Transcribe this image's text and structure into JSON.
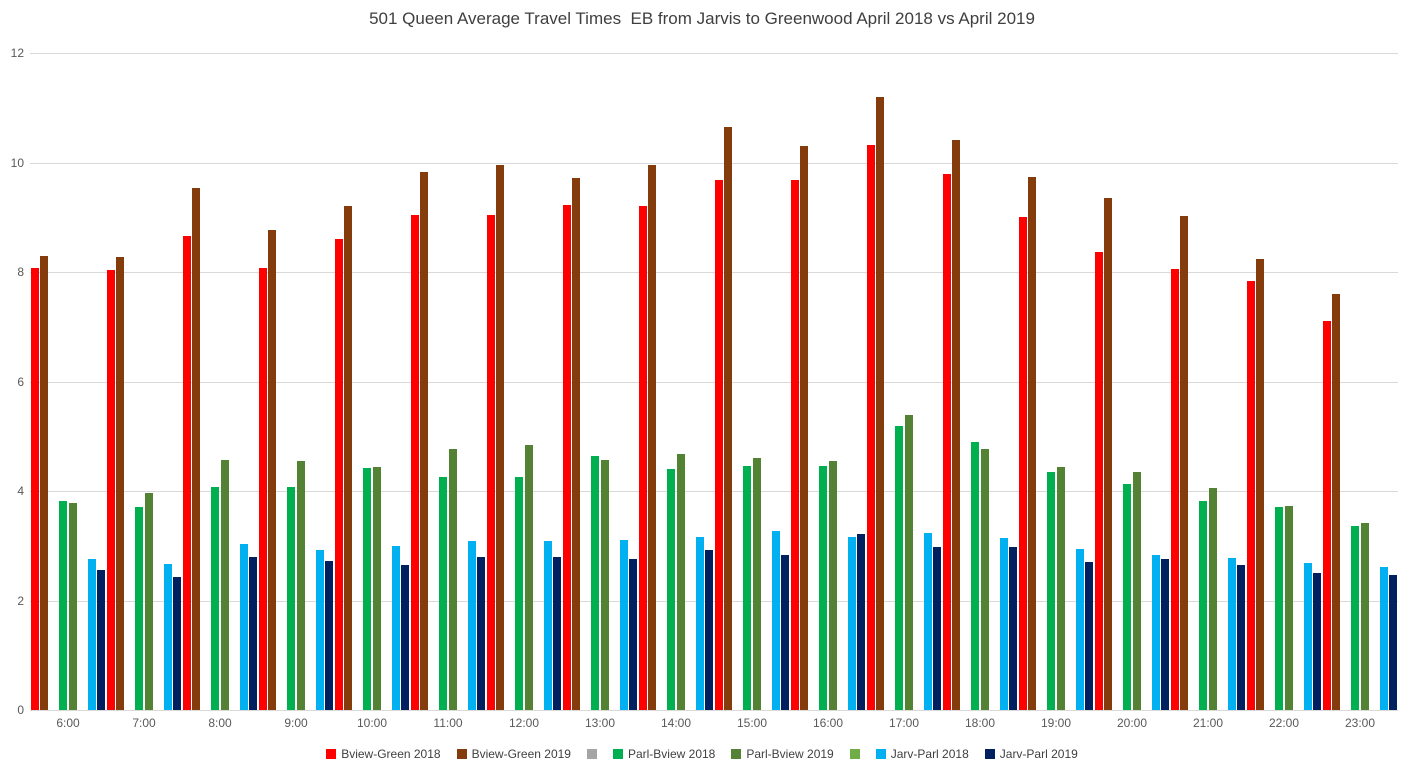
{
  "chart_data": {
    "type": "bar",
    "title": "501 Queen Average Travel Times  EB from Jarvis to Greenwood April 2018 vs April 2019",
    "xlabel": "",
    "ylabel": "",
    "ylim": [
      0,
      12
    ],
    "yticks": [
      0,
      2,
      4,
      6,
      8,
      10,
      12
    ],
    "grid": true,
    "legend_position": "bottom",
    "categories": [
      "6:00",
      "7:00",
      "8:00",
      "9:00",
      "10:00",
      "11:00",
      "12:00",
      "13:00",
      "14:00",
      "15:00",
      "16:00",
      "17:00",
      "18:00",
      "19:00",
      "20:00",
      "21:00",
      "22:00",
      "23:00"
    ],
    "series": [
      {
        "name": "Bview-Green 2018",
        "color": "#FF0000",
        "values": [
          8.08,
          8.03,
          8.66,
          8.08,
          8.6,
          9.04,
          9.05,
          9.22,
          9.2,
          9.68,
          9.68,
          10.32,
          9.79,
          9.0,
          8.37,
          8.06,
          7.83,
          7.1
        ]
      },
      {
        "name": "Bview-Green 2019",
        "color": "#843C0C",
        "values": [
          8.29,
          8.27,
          9.54,
          8.77,
          9.2,
          9.83,
          9.95,
          9.72,
          9.95,
          10.65,
          10.3,
          11.2,
          10.41,
          9.74,
          9.36,
          9.03,
          8.24,
          7.6
        ]
      },
      {
        "name": "",
        "color": "#A5A5A5",
        "values": [
          0,
          0,
          0,
          0,
          0,
          0,
          0,
          0,
          0,
          0,
          0,
          0,
          0,
          0,
          0,
          0,
          0,
          0
        ]
      },
      {
        "name": "Parl-Bview 2018",
        "color": "#00B050",
        "values": [
          3.82,
          3.7,
          4.07,
          4.08,
          4.42,
          4.26,
          4.26,
          4.64,
          4.41,
          4.45,
          4.46,
          5.18,
          4.89,
          4.34,
          4.12,
          3.81,
          3.7,
          3.37
        ]
      },
      {
        "name": "Parl-Bview 2019",
        "color": "#548235",
        "values": [
          3.78,
          3.97,
          4.57,
          4.54,
          4.44,
          4.77,
          4.84,
          4.56,
          4.68,
          4.6,
          4.54,
          5.38,
          4.76,
          4.43,
          4.34,
          4.05,
          3.73,
          3.41
        ]
      },
      {
        "name": "",
        "color": "#70AD47",
        "values": [
          0,
          0,
          0,
          0,
          0,
          0,
          0,
          0,
          0,
          0,
          0,
          0,
          0,
          0,
          0,
          0,
          0,
          0
        ]
      },
      {
        "name": "Jarv-Parl 2018",
        "color": "#00B0F0",
        "values": [
          2.75,
          2.67,
          3.03,
          2.93,
          3.0,
          3.09,
          3.09,
          3.11,
          3.16,
          3.27,
          3.16,
          3.24,
          3.14,
          2.95,
          2.84,
          2.77,
          2.69,
          2.61
        ]
      },
      {
        "name": "Jarv-Parl 2019",
        "color": "#002060",
        "values": [
          2.55,
          2.43,
          2.8,
          2.73,
          2.65,
          2.8,
          2.8,
          2.76,
          2.92,
          2.84,
          3.21,
          2.98,
          2.98,
          2.7,
          2.76,
          2.64,
          2.51,
          2.46
        ]
      }
    ]
  },
  "colors": {
    "background": "#FFFFFF",
    "gridline": "#D9D9D9",
    "axis_text": "#595959",
    "title_text": "#3F3F3F"
  }
}
